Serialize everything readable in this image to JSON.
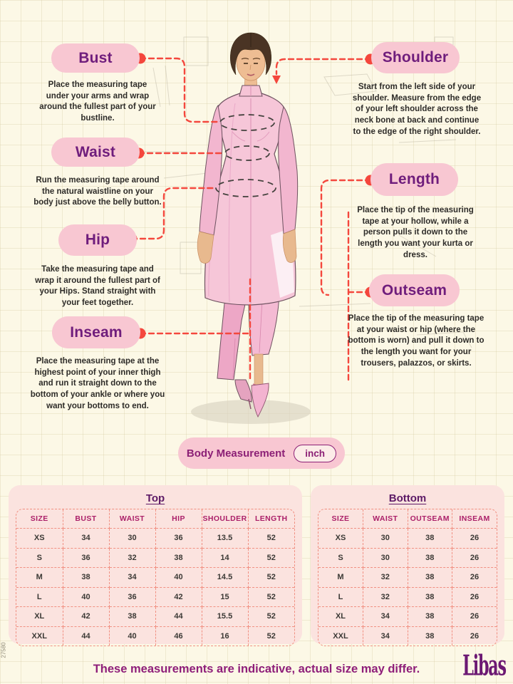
{
  "measurements": [
    {
      "label": "Bust",
      "description": "Place the measuring tape under your arms and wrap around the fullest part of your bustline."
    },
    {
      "label": "Waist",
      "description": "Run the measuring tape around the natural waistline on your body just above the belly button."
    },
    {
      "label": "Hip",
      "description": "Take the measuring tape and wrap it around the fullest part of your Hips. Stand straight with your feet together."
    },
    {
      "label": "Inseam",
      "description": "Place the measuring tape at the highest point of your inner thigh and run it straight down to the bottom of your ankle or where you want your bottoms to end."
    },
    {
      "label": "Shoulder",
      "description": "Start from the left side of your shoulder. Measure from the edge of your left shoulder across the neck bone at back and continue to the edge of the right shoulder."
    },
    {
      "label": "Length",
      "description": "Place the tip of the measuring tape at your hollow, while a person pulls it down to the length you want your kurta or dress."
    },
    {
      "label": "Outseam",
      "description": "Place the tip of the measuring tape at your waist or hip (where the bottom is worn) and pull it down to the length you want for your trousers, palazzos, or skirts."
    }
  ],
  "unit_badge": {
    "label": "Body Measurement",
    "unit": "inch"
  },
  "tables": [
    {
      "title": "Top",
      "columns": [
        "SIZE",
        "BUST",
        "WAIST",
        "HIP",
        "SHOULDER",
        "LENGTH"
      ],
      "rows": [
        [
          "XS",
          "34",
          "30",
          "36",
          "13.5",
          "52"
        ],
        [
          "S",
          "36",
          "32",
          "38",
          "14",
          "52"
        ],
        [
          "M",
          "38",
          "34",
          "40",
          "14.5",
          "52"
        ],
        [
          "L",
          "40",
          "36",
          "42",
          "15",
          "52"
        ],
        [
          "XL",
          "42",
          "38",
          "44",
          "15.5",
          "52"
        ],
        [
          "XXL",
          "44",
          "40",
          "46",
          "16",
          "52"
        ]
      ]
    },
    {
      "title": "Bottom",
      "columns": [
        "SIZE",
        "WAIST",
        "OUTSEAM",
        "INSEAM"
      ],
      "rows": [
        [
          "XS",
          "30",
          "38",
          "26"
        ],
        [
          "S",
          "30",
          "38",
          "26"
        ],
        [
          "M",
          "32",
          "38",
          "26"
        ],
        [
          "L",
          "32",
          "38",
          "26"
        ],
        [
          "XL",
          "34",
          "38",
          "26"
        ],
        [
          "XXL",
          "34",
          "38",
          "26"
        ]
      ]
    }
  ],
  "footer": {
    "note": "These measurements are indicative, actual size may differ.",
    "brand": "Libas",
    "code": "27580"
  },
  "colors": {
    "background": "#fcf8e6",
    "pill_pink": "#f8c7d2",
    "label_purple": "#6f1d7c",
    "connector_red": "#f4473d",
    "table_pink": "#fbe3df",
    "table_border": "#f19082",
    "header_magenta": "#ab2069",
    "footer_purple": "#8e1e79"
  }
}
